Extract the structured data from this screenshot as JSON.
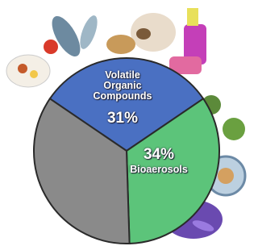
{
  "chart_data": {
    "type": "pie",
    "categories": [
      "Volatile Organic Compounds",
      "Bioaerosols",
      null
    ],
    "values": [
      31,
      34,
      35
    ],
    "value_labels": [
      "31%",
      "34%",
      null
    ],
    "colors": [
      "#4a70c2",
      "#5cc47a",
      "#8a8a8a"
    ]
  }
}
